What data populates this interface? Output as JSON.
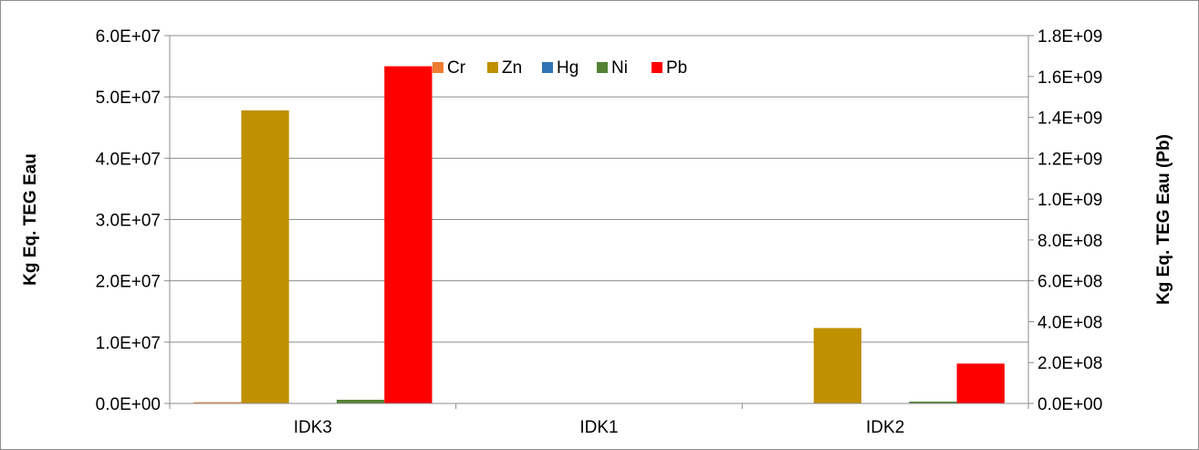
{
  "chart_data": {
    "type": "bar",
    "categories": [
      "IDK3",
      "IDK1",
      "IDK2"
    ],
    "series": [
      {
        "name": "Cr",
        "color": "#ED7D31",
        "axis": "left",
        "values": [
          200000,
          60000,
          0
        ]
      },
      {
        "name": "Zn",
        "color": "#BF9000",
        "axis": "left",
        "values": [
          47800000,
          0,
          12300000
        ]
      },
      {
        "name": "Hg",
        "color": "#2E75B6",
        "axis": "left",
        "values": [
          0,
          0,
          0
        ]
      },
      {
        "name": "Ni",
        "color": "#548235",
        "axis": "left",
        "values": [
          600000,
          0,
          300000
        ]
      },
      {
        "name": "Pb",
        "color": "#FF0000",
        "axis": "right",
        "values": [
          1650000000,
          0,
          195000000
        ]
      }
    ],
    "ylabel": "Kg Eq. TEG Eau",
    "y2label": "Kg Eq. TEG Eau (Pb)",
    "ylim": [
      0,
      60000000
    ],
    "y2lim": [
      0,
      1800000000
    ],
    "yticks": [
      "0.0E+00",
      "1.0E+07",
      "2.0E+07",
      "3.0E+07",
      "4.0E+07",
      "5.0E+07",
      "6.0E+07"
    ],
    "y2ticks": [
      "0.0E+00",
      "2.0E+08",
      "4.0E+08",
      "6.0E+08",
      "8.0E+08",
      "1.0E+09",
      "1.2E+09",
      "1.4E+09",
      "1.6E+09",
      "1.8E+09"
    ],
    "grid": true,
    "legend_position": "top-center"
  }
}
